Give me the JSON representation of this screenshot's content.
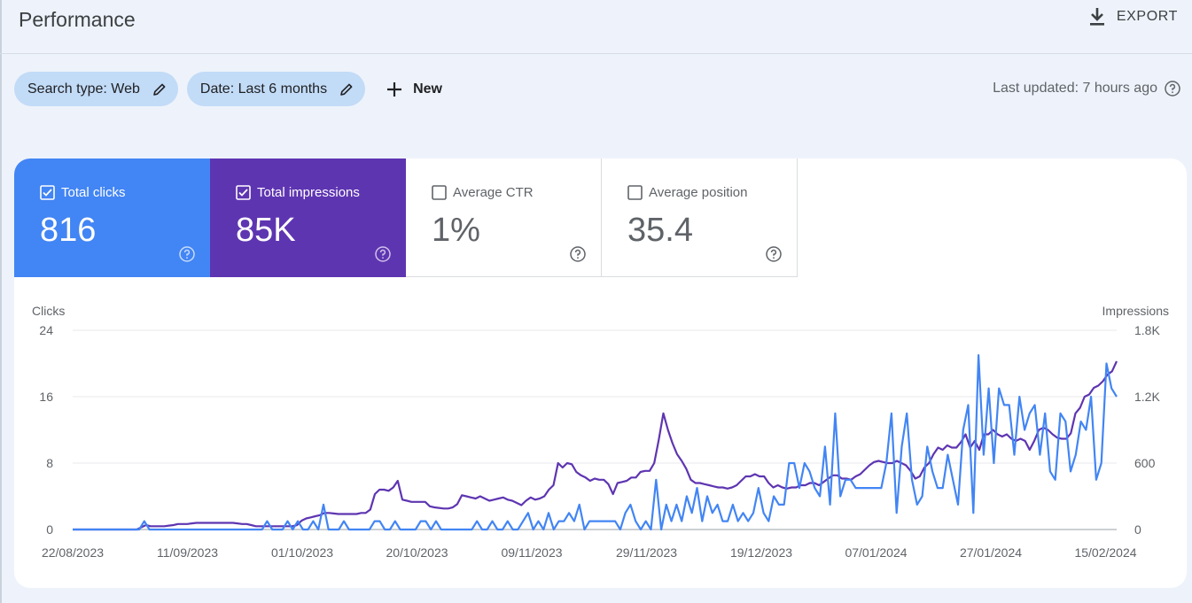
{
  "header": {
    "title": "Performance",
    "export_label": "EXPORT"
  },
  "filters": {
    "search_type": "Search type: Web",
    "date": "Date: Last 6 months",
    "new_label": "New"
  },
  "last_updated": "Last updated: 7 hours ago",
  "metrics": [
    {
      "label": "Total clicks",
      "value": "816",
      "checked": true
    },
    {
      "label": "Total impressions",
      "value": "85K",
      "checked": true
    },
    {
      "label": "Average CTR",
      "value": "1%",
      "checked": false
    },
    {
      "label": "Average position",
      "value": "35.4",
      "checked": false
    }
  ],
  "colors": {
    "clicks": "#4285f4",
    "impressions": "#5e35b1",
    "chip": "#c2dbf7"
  },
  "icons": [
    "download-icon",
    "edit-icon",
    "plus-icon",
    "help-icon",
    "checkbox-icon"
  ],
  "chart_data": {
    "type": "line",
    "y_left": {
      "label": "Clicks",
      "ticks": [
        "0",
        "8",
        "16",
        "24"
      ],
      "range": [
        0,
        24
      ]
    },
    "y_right": {
      "label": "Impressions",
      "ticks": [
        "0",
        "600",
        "1.2K",
        "1.8K"
      ],
      "range": [
        0,
        1800
      ]
    },
    "x_ticks": [
      "22/08/2023",
      "11/09/2023",
      "01/10/2023",
      "20/10/2023",
      "09/11/2023",
      "29/11/2023",
      "19/12/2023",
      "07/01/2024",
      "27/01/2024",
      "15/02/2024"
    ],
    "grid": true,
    "series": [
      {
        "name": "Clicks",
        "axis": "left",
        "color": "#4285f4",
        "values": [
          0,
          0,
          0,
          0,
          0,
          0,
          0,
          0,
          0,
          0,
          0,
          0,
          0,
          0,
          1,
          0,
          0,
          0,
          0,
          0,
          0,
          0,
          0,
          0,
          0,
          0,
          0,
          0,
          0,
          0,
          0,
          0,
          0,
          0,
          0,
          0,
          0,
          0,
          1,
          0,
          0,
          0,
          1,
          0,
          1,
          0,
          0,
          1,
          0,
          3,
          0,
          0,
          0,
          1,
          0,
          0,
          0,
          0,
          0,
          1,
          1,
          0,
          0,
          1,
          0,
          0,
          0,
          0,
          1,
          1,
          0,
          1,
          0,
          0,
          0,
          0,
          0,
          0,
          0,
          1,
          0,
          0,
          1,
          0,
          0,
          1,
          0,
          0,
          1,
          2,
          0,
          1,
          0,
          2,
          0,
          1,
          1,
          2,
          1,
          3,
          0,
          1,
          1,
          1,
          1,
          1,
          1,
          0,
          2,
          3,
          1,
          0,
          1,
          0,
          6,
          0,
          3,
          1,
          3,
          1,
          4,
          2,
          5,
          1,
          4,
          2,
          3,
          1,
          1,
          3,
          1,
          2,
          1,
          2,
          5,
          2,
          1,
          4,
          3,
          3,
          8,
          8,
          5,
          8,
          7,
          5,
          4,
          10,
          3,
          14,
          4,
          6,
          6,
          5,
          5,
          5,
          5,
          5,
          5,
          8,
          14,
          2,
          10,
          14,
          6,
          3,
          4,
          10,
          7,
          5,
          5,
          9,
          6,
          3,
          12,
          15,
          2,
          21,
          9,
          17,
          8,
          17,
          15,
          15,
          9,
          16,
          12,
          14,
          15,
          9,
          14,
          7,
          6,
          14,
          13,
          7,
          9,
          13,
          12,
          16,
          6,
          8,
          20,
          17,
          16
        ]
      },
      {
        "name": "Impressions",
        "axis": "right",
        "color": "#5e35b1",
        "values": [
          0,
          0,
          0,
          0,
          0,
          0,
          0,
          0,
          0,
          0,
          0,
          0,
          0,
          0,
          0,
          20,
          40,
          30,
          30,
          30,
          30,
          35,
          40,
          50,
          50,
          50,
          55,
          60,
          60,
          60,
          60,
          60,
          60,
          60,
          60,
          60,
          55,
          50,
          50,
          40,
          30,
          30,
          30,
          30,
          30,
          30,
          30,
          30,
          30,
          40,
          80,
          100,
          110,
          120,
          130,
          150,
          150,
          145,
          140,
          140,
          140,
          140,
          140,
          150,
          150,
          180,
          320,
          360,
          360,
          350,
          380,
          440,
          270,
          260,
          250,
          250,
          250,
          250,
          210,
          200,
          195,
          190,
          190,
          200,
          230,
          310,
          300,
          290,
          280,
          300,
          280,
          260,
          270,
          280,
          290,
          270,
          260,
          240,
          220,
          260,
          290,
          270,
          280,
          300,
          360,
          400,
          600,
          560,
          600,
          590,
          520,
          490,
          470,
          440,
          460,
          450,
          450,
          410,
          320,
          420,
          430,
          440,
          470,
          470,
          520,
          530,
          530,
          600,
          810,
          1050,
          900,
          780,
          680,
          620,
          550,
          450,
          420,
          420,
          410,
          400,
          390,
          380,
          380,
          370,
          380,
          400,
          440,
          480,
          480,
          500,
          480,
          480,
          420,
          380,
          400,
          380,
          370,
          380,
          380,
          400,
          400,
          420,
          420,
          400,
          430,
          460,
          490,
          490,
          460,
          460,
          450,
          480,
          500,
          540,
          580,
          610,
          620,
          610,
          600,
          600,
          620,
          600,
          580,
          530,
          460,
          480,
          560,
          600,
          680,
          740,
          720,
          760,
          740,
          740,
          790,
          860,
          740,
          800,
          720,
          860,
          860,
          900,
          860,
          840,
          860,
          820,
          800,
          820,
          800,
          720,
          800,
          900,
          920,
          900,
          860,
          830,
          820,
          820,
          870,
          1050,
          1100,
          1200,
          1220,
          1280,
          1300,
          1340,
          1400,
          1430,
          1520
        ]
      }
    ]
  }
}
